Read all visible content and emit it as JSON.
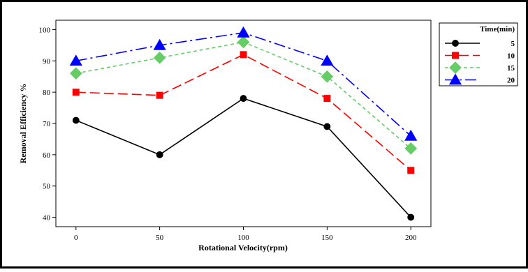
{
  "chart_data": {
    "type": "line",
    "title": "",
    "xlabel": "Rotational Velocity(rpm)",
    "ylabel": "Removal Efficiency %",
    "x": [
      0,
      50,
      100,
      150,
      200
    ],
    "xlim": [
      -12,
      212
    ],
    "ylim": [
      37,
      103
    ],
    "xticks": [
      0,
      50,
      100,
      150,
      200
    ],
    "yticks": [
      40,
      50,
      60,
      70,
      80,
      90,
      100
    ],
    "grid": false,
    "legend": {
      "title": "Time(min)",
      "placement": "right"
    },
    "series": [
      {
        "name": "5",
        "values": [
          71,
          60,
          78,
          69,
          40
        ],
        "color": "#000000",
        "marker": "circle",
        "dash": "solid"
      },
      {
        "name": "10",
        "values": [
          80,
          79,
          92,
          78,
          55
        ],
        "color": "#ff0000",
        "marker": "square",
        "dash": "long-dash"
      },
      {
        "name": "15",
        "values": [
          86,
          91,
          96,
          85,
          62
        ],
        "color": "#66cc66",
        "marker": "diamond",
        "dash": "short-dash"
      },
      {
        "name": "20",
        "values": [
          90,
          95,
          99,
          90,
          66
        ],
        "color": "#0000ff",
        "marker": "triangle",
        "dash": "dash-dot"
      }
    ]
  }
}
